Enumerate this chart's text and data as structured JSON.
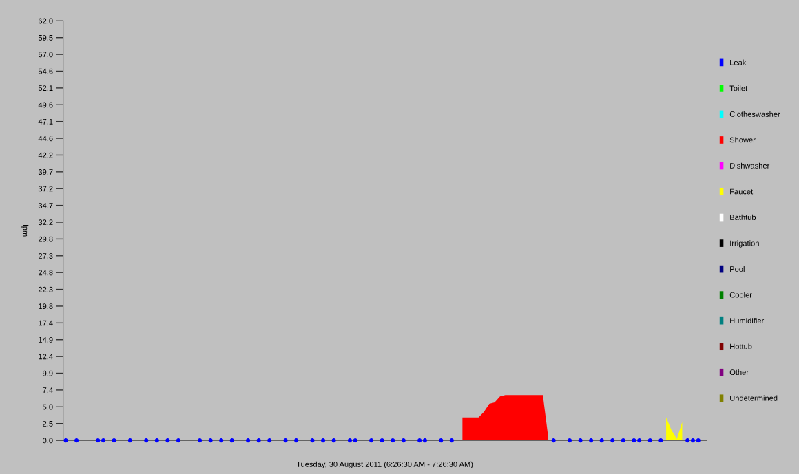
{
  "chart_data": {
    "type": "area",
    "xlabel": "Tuesday, 30 August 2011 (6:26:30 AM - 7:26:30 AM)",
    "ylabel": "lpm",
    "categories": [
      null,
      null,
      null,
      null,
      null,
      null,
      null,
      null,
      null,
      null,
      null,
      null,
      null,
      null,
      null,
      null,
      null,
      null,
      null,
      null,
      null,
      null,
      null,
      null,
      null,
      null,
      null,
      null,
      null,
      null,
      null,
      null,
      null,
      null,
      null,
      null,
      null,
      null,
      null,
      null,
      null,
      null,
      null,
      null,
      null,
      null,
      null,
      null,
      null,
      null,
      null,
      null,
      null,
      null,
      null,
      null,
      null,
      null,
      null,
      null,
      null,
      null,
      null,
      null,
      null,
      null,
      null,
      null,
      null,
      null,
      null,
      null,
      null,
      null,
      null,
      null,
      null,
      null,
      null,
      null,
      null,
      null,
      null,
      null,
      null,
      null,
      null,
      null,
      null,
      null,
      null,
      null,
      null,
      null,
      null,
      null,
      null,
      null,
      null,
      null,
      null,
      null,
      null,
      null,
      null,
      null,
      null,
      null,
      null,
      null,
      null,
      null,
      null,
      null,
      null,
      null,
      null,
      null,
      null,
      null
    ],
    "ylim": [
      0,
      62
    ],
    "yticks": [
      {
        "value": 0,
        "label": "0.0"
      },
      {
        "value": 2.48,
        "label": "2.5"
      },
      {
        "value": 4.96,
        "label": "5.0"
      },
      {
        "value": 7.44,
        "label": "7.4"
      },
      {
        "value": 9.92,
        "label": "9.9"
      },
      {
        "value": 12.4,
        "label": "12.4"
      },
      {
        "value": 14.88,
        "label": "14.9"
      },
      {
        "value": 17.36,
        "label": "17.4"
      },
      {
        "value": 19.84,
        "label": "19.8"
      },
      {
        "value": 22.32,
        "label": "22.3"
      },
      {
        "value": 24.8,
        "label": "24.8"
      },
      {
        "value": 27.28,
        "label": "27.3"
      },
      {
        "value": 29.76,
        "label": "29.8"
      },
      {
        "value": 32.24,
        "label": "32.2"
      },
      {
        "value": 34.72,
        "label": "34.7"
      },
      {
        "value": 37.2,
        "label": "37.2"
      },
      {
        "value": 39.68,
        "label": "39.7"
      },
      {
        "value": 42.16,
        "label": "42.2"
      },
      {
        "value": 44.64,
        "label": "44.6"
      },
      {
        "value": 47.12,
        "label": "47.1"
      },
      {
        "value": 49.6,
        "label": "49.6"
      },
      {
        "value": 52.08,
        "label": "52.1"
      },
      {
        "value": 54.56,
        "label": "54.6"
      },
      {
        "value": 57.04,
        "label": "57.0"
      },
      {
        "value": 59.52,
        "label": "59.5"
      },
      {
        "value": 62,
        "label": "62.0"
      }
    ],
    "tick_labels": "y",
    "grid": false,
    "legend": "right",
    "series": [
      {
        "name": "Leak",
        "color": "#0000ff",
        "type": "scatter",
        "values": [
          0,
          null,
          0,
          null,
          null,
          null,
          0,
          0,
          null,
          0,
          null,
          null,
          0,
          null,
          null,
          0,
          null,
          0,
          null,
          0,
          null,
          0,
          null,
          null,
          null,
          0,
          null,
          0,
          null,
          0,
          null,
          0,
          null,
          null,
          0,
          null,
          0,
          null,
          0,
          null,
          null,
          0,
          null,
          0,
          null,
          null,
          0,
          null,
          0,
          null,
          0,
          null,
          null,
          0,
          0,
          null,
          null,
          0,
          null,
          0,
          null,
          0,
          null,
          0,
          null,
          null,
          0,
          0,
          null,
          null,
          0,
          null,
          0,
          null,
          null,
          null,
          null,
          null,
          null,
          null,
          null,
          null,
          null,
          null,
          null,
          null,
          null,
          null,
          null,
          null,
          null,
          0,
          null,
          null,
          0,
          null,
          0,
          null,
          0,
          null,
          0,
          null,
          0,
          null,
          0,
          null,
          0,
          0,
          null,
          0,
          null,
          0,
          null,
          null,
          null,
          null,
          0,
          0,
          0,
          null
        ]
      },
      {
        "name": "Toilet",
        "color": "#00ff00",
        "values": [
          null,
          null,
          null,
          null,
          null,
          null,
          null,
          null,
          null,
          null,
          null,
          null,
          null,
          null,
          null,
          null,
          null,
          null,
          null,
          null,
          null,
          null,
          null,
          null,
          null,
          null,
          null,
          null,
          null,
          null,
          null,
          null,
          null,
          null,
          null,
          null,
          null,
          null,
          null,
          null,
          null,
          null,
          null,
          null,
          null,
          null,
          null,
          null,
          null,
          null,
          null,
          null,
          null,
          null,
          null,
          null,
          null,
          null,
          null,
          null,
          null,
          null,
          null,
          null,
          null,
          null,
          null,
          null,
          null,
          null,
          null,
          null,
          null,
          null,
          null,
          null,
          null,
          null,
          null,
          null,
          null,
          null,
          null,
          null,
          null,
          null,
          null,
          null,
          null,
          null,
          null,
          null,
          null,
          null,
          null,
          null,
          null,
          null,
          null,
          null,
          null,
          null,
          null,
          null,
          null,
          null,
          null,
          null,
          null,
          null,
          null,
          null,
          null,
          null,
          null,
          null,
          null,
          null,
          null,
          null
        ]
      },
      {
        "name": "Clotheswasher",
        "color": "#00ffff",
        "values": [
          null,
          null,
          null,
          null,
          null,
          null,
          null,
          null,
          null,
          null,
          null,
          null,
          null,
          null,
          null,
          null,
          null,
          null,
          null,
          null,
          null,
          null,
          null,
          null,
          null,
          null,
          null,
          null,
          null,
          null,
          null,
          null,
          null,
          null,
          null,
          null,
          null,
          null,
          null,
          null,
          null,
          null,
          null,
          null,
          null,
          null,
          null,
          null,
          null,
          null,
          null,
          null,
          null,
          null,
          null,
          null,
          null,
          null,
          null,
          null,
          null,
          null,
          null,
          null,
          null,
          null,
          null,
          null,
          null,
          null,
          null,
          null,
          null,
          null,
          null,
          null,
          null,
          null,
          null,
          null,
          null,
          null,
          null,
          null,
          null,
          null,
          null,
          null,
          null,
          null,
          null,
          null,
          null,
          null,
          null,
          null,
          null,
          null,
          null,
          null,
          null,
          null,
          null,
          null,
          null,
          null,
          null,
          null,
          null,
          null,
          null,
          null,
          null,
          null,
          null,
          null,
          null,
          null,
          null,
          null
        ]
      },
      {
        "name": "Shower",
        "color": "#ff0000",
        "values": [
          null,
          null,
          null,
          null,
          null,
          null,
          null,
          null,
          null,
          null,
          null,
          null,
          null,
          null,
          null,
          null,
          null,
          null,
          null,
          null,
          null,
          null,
          null,
          null,
          null,
          null,
          null,
          null,
          null,
          null,
          null,
          null,
          null,
          null,
          null,
          null,
          null,
          null,
          null,
          null,
          null,
          null,
          null,
          null,
          null,
          null,
          null,
          null,
          null,
          null,
          null,
          null,
          null,
          null,
          null,
          null,
          null,
          null,
          null,
          null,
          null,
          null,
          null,
          null,
          null,
          null,
          null,
          null,
          null,
          null,
          null,
          null,
          null,
          null,
          3.4,
          3.4,
          3.4,
          3.4,
          4.2,
          5.4,
          5.6,
          6.5,
          6.7,
          6.7,
          6.7,
          6.7,
          6.7,
          6.7,
          6.7,
          6.7,
          0.5,
          null,
          null,
          null,
          null,
          null,
          null,
          null,
          null,
          null,
          null,
          null,
          null,
          null,
          null,
          null,
          null,
          null,
          null,
          null,
          null,
          null,
          null,
          null,
          null,
          null,
          null,
          null,
          null,
          null
        ]
      },
      {
        "name": "Dishwasher",
        "color": "#ff00ff",
        "values": [
          null,
          null,
          null,
          null,
          null,
          null,
          null,
          null,
          null,
          null,
          null,
          null,
          null,
          null,
          null,
          null,
          null,
          null,
          null,
          null,
          null,
          null,
          null,
          null,
          null,
          null,
          null,
          null,
          null,
          null,
          null,
          null,
          null,
          null,
          null,
          null,
          null,
          null,
          null,
          null,
          null,
          null,
          null,
          null,
          null,
          null,
          null,
          null,
          null,
          null,
          null,
          null,
          null,
          null,
          null,
          null,
          null,
          null,
          null,
          null,
          null,
          null,
          null,
          null,
          null,
          null,
          null,
          null,
          null,
          null,
          null,
          null,
          null,
          null,
          null,
          null,
          null,
          null,
          null,
          null,
          null,
          null,
          null,
          null,
          null,
          null,
          null,
          null,
          null,
          null,
          null,
          null,
          null,
          null,
          null,
          null,
          null,
          null,
          null,
          null,
          null,
          null,
          null,
          null,
          null,
          null,
          null,
          null,
          null,
          null,
          null,
          null,
          null,
          null,
          null,
          null,
          null,
          null,
          null,
          null
        ]
      },
      {
        "name": "Faucet",
        "color": "#ffff00",
        "values": [
          null,
          null,
          null,
          null,
          null,
          null,
          null,
          null,
          null,
          null,
          null,
          null,
          null,
          null,
          null,
          null,
          null,
          null,
          null,
          null,
          null,
          null,
          null,
          null,
          null,
          null,
          null,
          null,
          null,
          null,
          null,
          null,
          null,
          null,
          null,
          null,
          null,
          null,
          null,
          null,
          null,
          null,
          null,
          null,
          null,
          null,
          null,
          null,
          null,
          null,
          null,
          null,
          null,
          null,
          null,
          null,
          null,
          null,
          null,
          null,
          null,
          null,
          null,
          null,
          null,
          null,
          null,
          null,
          null,
          null,
          null,
          null,
          null,
          null,
          null,
          null,
          null,
          null,
          null,
          null,
          null,
          null,
          null,
          null,
          null,
          null,
          null,
          null,
          null,
          null,
          null,
          null,
          null,
          null,
          null,
          null,
          null,
          null,
          null,
          null,
          null,
          null,
          null,
          null,
          null,
          null,
          null,
          null,
          null,
          null,
          null,
          null,
          3.4,
          1.5,
          0.2,
          2.7,
          null,
          null,
          null,
          null
        ]
      },
      {
        "name": "Bathtub",
        "color": "#ffffff",
        "values": [
          null,
          null,
          null,
          null,
          null,
          null,
          null,
          null,
          null,
          null,
          null,
          null,
          null,
          null,
          null,
          null,
          null,
          null,
          null,
          null,
          null,
          null,
          null,
          null,
          null,
          null,
          null,
          null,
          null,
          null,
          null,
          null,
          null,
          null,
          null,
          null,
          null,
          null,
          null,
          null,
          null,
          null,
          null,
          null,
          null,
          null,
          null,
          null,
          null,
          null,
          null,
          null,
          null,
          null,
          null,
          null,
          null,
          null,
          null,
          null,
          null,
          null,
          null,
          null,
          null,
          null,
          null,
          null,
          null,
          null,
          null,
          null,
          null,
          null,
          null,
          null,
          null,
          null,
          null,
          null,
          null,
          null,
          null,
          null,
          null,
          null,
          null,
          null,
          null,
          null,
          null,
          null,
          null,
          null,
          null,
          null,
          null,
          null,
          null,
          null,
          null,
          null,
          null,
          null,
          null,
          null,
          null,
          null,
          null,
          null,
          null,
          null,
          null,
          null,
          null,
          null,
          null,
          null,
          null,
          null
        ]
      },
      {
        "name": "Irrigation",
        "color": "#000000",
        "values": [
          null,
          null,
          null,
          null,
          null,
          null,
          null,
          null,
          null,
          null,
          null,
          null,
          null,
          null,
          null,
          null,
          null,
          null,
          null,
          null,
          null,
          null,
          null,
          null,
          null,
          null,
          null,
          null,
          null,
          null,
          null,
          null,
          null,
          null,
          null,
          null,
          null,
          null,
          null,
          null,
          null,
          null,
          null,
          null,
          null,
          null,
          null,
          null,
          null,
          null,
          null,
          null,
          null,
          null,
          null,
          null,
          null,
          null,
          null,
          null,
          null,
          null,
          null,
          null,
          null,
          null,
          null,
          null,
          null,
          null,
          null,
          null,
          null,
          null,
          null,
          null,
          null,
          null,
          null,
          null,
          null,
          null,
          null,
          null,
          null,
          null,
          null,
          null,
          null,
          null,
          null,
          null,
          null,
          null,
          null,
          null,
          null,
          null,
          null,
          null,
          null,
          null,
          null,
          null,
          null,
          null,
          null,
          null,
          null,
          null,
          null,
          null,
          null,
          null,
          null,
          null,
          null,
          null,
          null,
          null
        ]
      },
      {
        "name": "Pool",
        "color": "#000080",
        "values": [
          null,
          null,
          null,
          null,
          null,
          null,
          null,
          null,
          null,
          null,
          null,
          null,
          null,
          null,
          null,
          null,
          null,
          null,
          null,
          null,
          null,
          null,
          null,
          null,
          null,
          null,
          null,
          null,
          null,
          null,
          null,
          null,
          null,
          null,
          null,
          null,
          null,
          null,
          null,
          null,
          null,
          null,
          null,
          null,
          null,
          null,
          null,
          null,
          null,
          null,
          null,
          null,
          null,
          null,
          null,
          null,
          null,
          null,
          null,
          null,
          null,
          null,
          null,
          null,
          null,
          null,
          null,
          null,
          null,
          null,
          null,
          null,
          null,
          null,
          null,
          null,
          null,
          null,
          null,
          null,
          null,
          null,
          null,
          null,
          null,
          null,
          null,
          null,
          null,
          null,
          null,
          null,
          null,
          null,
          null,
          null,
          null,
          null,
          null,
          null,
          null,
          null,
          null,
          null,
          null,
          null,
          null,
          null,
          null,
          null,
          null,
          null,
          null,
          null,
          null,
          null,
          null,
          null,
          null,
          null
        ]
      },
      {
        "name": "Cooler",
        "color": "#008000",
        "values": [
          null,
          null,
          null,
          null,
          null,
          null,
          null,
          null,
          null,
          null,
          null,
          null,
          null,
          null,
          null,
          null,
          null,
          null,
          null,
          null,
          null,
          null,
          null,
          null,
          null,
          null,
          null,
          null,
          null,
          null,
          null,
          null,
          null,
          null,
          null,
          null,
          null,
          null,
          null,
          null,
          null,
          null,
          null,
          null,
          null,
          null,
          null,
          null,
          null,
          null,
          null,
          null,
          null,
          null,
          null,
          null,
          null,
          null,
          null,
          null,
          null,
          null,
          null,
          null,
          null,
          null,
          null,
          null,
          null,
          null,
          null,
          null,
          null,
          null,
          null,
          null,
          null,
          null,
          null,
          null,
          null,
          null,
          null,
          null,
          null,
          null,
          null,
          null,
          null,
          null,
          null,
          null,
          null,
          null,
          null,
          null,
          null,
          null,
          null,
          null,
          null,
          null,
          null,
          null,
          null,
          null,
          null,
          null,
          null,
          null,
          null,
          null,
          null,
          null,
          null,
          null,
          null,
          null,
          null,
          null
        ]
      },
      {
        "name": "Humidifier",
        "color": "#008080",
        "values": [
          null,
          null,
          null,
          null,
          null,
          null,
          null,
          null,
          null,
          null,
          null,
          null,
          null,
          null,
          null,
          null,
          null,
          null,
          null,
          null,
          null,
          null,
          null,
          null,
          null,
          null,
          null,
          null,
          null,
          null,
          null,
          null,
          null,
          null,
          null,
          null,
          null,
          null,
          null,
          null,
          null,
          null,
          null,
          null,
          null,
          null,
          null,
          null,
          null,
          null,
          null,
          null,
          null,
          null,
          null,
          null,
          null,
          null,
          null,
          null,
          null,
          null,
          null,
          null,
          null,
          null,
          null,
          null,
          null,
          null,
          null,
          null,
          null,
          null,
          null,
          null,
          null,
          null,
          null,
          null,
          null,
          null,
          null,
          null,
          null,
          null,
          null,
          null,
          null,
          null,
          null,
          null,
          null,
          null,
          null,
          null,
          null,
          null,
          null,
          null,
          null,
          null,
          null,
          null,
          null,
          null,
          null,
          null,
          null,
          null,
          null,
          null,
          null,
          null,
          null,
          null,
          null,
          null,
          null,
          null
        ]
      },
      {
        "name": "Hottub",
        "color": "#800000",
        "values": [
          null,
          null,
          null,
          null,
          null,
          null,
          null,
          null,
          null,
          null,
          null,
          null,
          null,
          null,
          null,
          null,
          null,
          null,
          null,
          null,
          null,
          null,
          null,
          null,
          null,
          null,
          null,
          null,
          null,
          null,
          null,
          null,
          null,
          null,
          null,
          null,
          null,
          null,
          null,
          null,
          null,
          null,
          null,
          null,
          null,
          null,
          null,
          null,
          null,
          null,
          null,
          null,
          null,
          null,
          null,
          null,
          null,
          null,
          null,
          null,
          null,
          null,
          null,
          null,
          null,
          null,
          null,
          null,
          null,
          null,
          null,
          null,
          null,
          null,
          null,
          null,
          null,
          null,
          null,
          null,
          null,
          null,
          null,
          null,
          null,
          null,
          null,
          null,
          null,
          null,
          null,
          null,
          null,
          null,
          null,
          null,
          null,
          null,
          null,
          null,
          null,
          null,
          null,
          null,
          null,
          null,
          null,
          null,
          null,
          null,
          null,
          null,
          null,
          null,
          null,
          null,
          null,
          null,
          null,
          null
        ]
      },
      {
        "name": "Other",
        "color": "#800080",
        "values": [
          null,
          null,
          null,
          null,
          null,
          null,
          null,
          null,
          null,
          null,
          null,
          null,
          null,
          null,
          null,
          null,
          null,
          null,
          null,
          null,
          null,
          null,
          null,
          null,
          null,
          null,
          null,
          null,
          null,
          null,
          null,
          null,
          null,
          null,
          null,
          null,
          null,
          null,
          null,
          null,
          null,
          null,
          null,
          null,
          null,
          null,
          null,
          null,
          null,
          null,
          null,
          null,
          null,
          null,
          null,
          null,
          null,
          null,
          null,
          null,
          null,
          null,
          null,
          null,
          null,
          null,
          null,
          null,
          null,
          null,
          null,
          null,
          null,
          null,
          null,
          null,
          null,
          null,
          null,
          null,
          null,
          null,
          null,
          null,
          null,
          null,
          null,
          null,
          null,
          null,
          null,
          null,
          null,
          null,
          null,
          null,
          null,
          null,
          null,
          null,
          null,
          null,
          null,
          null,
          null,
          null,
          null,
          null,
          null,
          null,
          null,
          null,
          null,
          null,
          null,
          null,
          null,
          null,
          null,
          null
        ]
      },
      {
        "name": "Undetermined",
        "color": "#808000",
        "values": [
          null,
          null,
          null,
          null,
          null,
          null,
          null,
          null,
          null,
          null,
          null,
          null,
          null,
          null,
          null,
          null,
          null,
          null,
          null,
          null,
          null,
          null,
          null,
          null,
          null,
          null,
          null,
          null,
          null,
          null,
          null,
          null,
          null,
          null,
          null,
          null,
          null,
          null,
          null,
          null,
          null,
          null,
          null,
          null,
          null,
          null,
          null,
          null,
          null,
          null,
          null,
          null,
          null,
          null,
          null,
          null,
          null,
          null,
          null,
          null,
          null,
          null,
          null,
          null,
          null,
          null,
          null,
          null,
          null,
          null,
          null,
          null,
          null,
          null,
          null,
          null,
          null,
          null,
          null,
          null,
          null,
          null,
          null,
          null,
          null,
          null,
          null,
          null,
          null,
          null,
          null,
          null,
          null,
          null,
          null,
          null,
          null,
          null,
          null,
          null,
          null,
          null,
          null,
          null,
          null,
          null,
          null,
          null,
          null,
          null,
          null,
          null,
          null,
          null,
          null,
          null,
          null,
          null,
          null,
          null
        ]
      }
    ]
  }
}
